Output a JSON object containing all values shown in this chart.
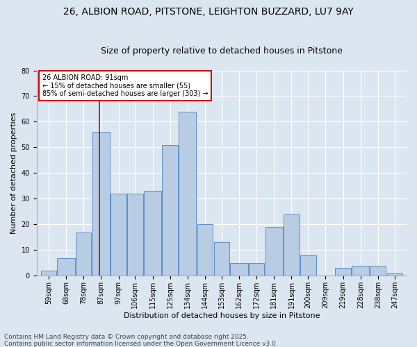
{
  "title1": "26, ALBION ROAD, PITSTONE, LEIGHTON BUZZARD, LU7 9AY",
  "title2": "Size of property relative to detached houses in Pitstone",
  "xlabel": "Distribution of detached houses by size in Pitstone",
  "ylabel": "Number of detached properties",
  "bin_edges": [
    59,
    68,
    78,
    87,
    97,
    106,
    115,
    125,
    134,
    144,
    153,
    162,
    172,
    181,
    191,
    200,
    209,
    219,
    228,
    238,
    247,
    256
  ],
  "bin_labels": [
    "59sqm",
    "68sqm",
    "78sqm",
    "87sqm",
    "97sqm",
    "106sqm",
    "115sqm",
    "125sqm",
    "134sqm",
    "144sqm",
    "153sqm",
    "162sqm",
    "172sqm",
    "181sqm",
    "191sqm",
    "200sqm",
    "209sqm",
    "219sqm",
    "228sqm",
    "238sqm",
    "247sqm"
  ],
  "values": [
    2,
    7,
    17,
    56,
    32,
    32,
    33,
    51,
    64,
    20,
    13,
    5,
    5,
    19,
    24,
    8,
    0,
    3,
    4,
    4,
    1
  ],
  "bar_color": "#b8cce4",
  "bar_edge_color": "#5b8dc8",
  "red_line_x": 91,
  "annotation_title": "26 ALBION ROAD: 91sqm",
  "annotation_line1": "← 15% of detached houses are smaller (55)",
  "annotation_line2": "85% of semi-detached houses are larger (303) →",
  "ylim": [
    0,
    80
  ],
  "yticks": [
    0,
    10,
    20,
    30,
    40,
    50,
    60,
    70,
    80
  ],
  "annotation_box_color": "#ffffff",
  "annotation_box_edge": "#cc0000",
  "footnote1": "Contains HM Land Registry data © Crown copyright and database right 2025.",
  "footnote2": "Contains public sector information licensed under the Open Government Licence v3.0.",
  "background_color": "#dce6f1",
  "plot_background": "#dce6f1",
  "grid_color": "#ffffff",
  "title_fontsize": 10,
  "subtitle_fontsize": 9,
  "axis_label_fontsize": 8,
  "tick_fontsize": 7,
  "footnote_fontsize": 6.5
}
